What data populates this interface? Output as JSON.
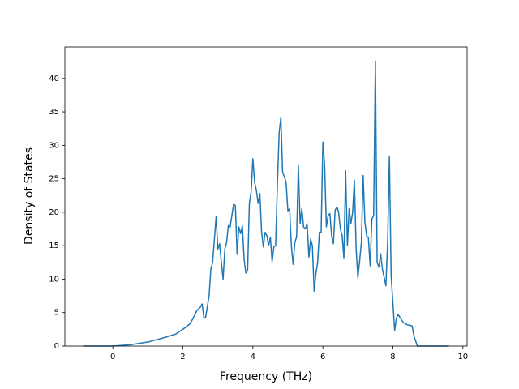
{
  "chart_data": {
    "type": "line",
    "xlabel": "Frequency (THz)",
    "ylabel": "Density of States",
    "x": [
      -0.85,
      0,
      0.5,
      1.0,
      1.5,
      1.8,
      2.0,
      2.2,
      2.3,
      2.4,
      2.5,
      2.55,
      2.6,
      2.65,
      2.75,
      2.8,
      2.85,
      2.95,
      3.0,
      3.05,
      3.1,
      3.15,
      3.2,
      3.25,
      3.3,
      3.35,
      3.45,
      3.5,
      3.55,
      3.6,
      3.65,
      3.7,
      3.75,
      3.8,
      3.85,
      3.9,
      3.95,
      4.0,
      4.05,
      4.1,
      4.15,
      4.2,
      4.25,
      4.3,
      4.35,
      4.4,
      4.45,
      4.5,
      4.55,
      4.6,
      4.65,
      4.7,
      4.75,
      4.8,
      4.85,
      4.9,
      4.95,
      5.0,
      5.05,
      5.1,
      5.15,
      5.2,
      5.25,
      5.3,
      5.35,
      5.4,
      5.45,
      5.5,
      5.55,
      5.6,
      5.65,
      5.7,
      5.75,
      5.8,
      5.85,
      5.9,
      5.95,
      6.0,
      6.05,
      6.1,
      6.15,
      6.2,
      6.25,
      6.3,
      6.35,
      6.4,
      6.45,
      6.5,
      6.55,
      6.6,
      6.65,
      6.7,
      6.75,
      6.8,
      6.85,
      6.9,
      6.95,
      7.0,
      7.05,
      7.1,
      7.15,
      7.2,
      7.25,
      7.3,
      7.35,
      7.4,
      7.45,
      7.5,
      7.55,
      7.6,
      7.65,
      7.7,
      7.75,
      7.8,
      7.85,
      7.9,
      7.95,
      8.0,
      8.05,
      8.1,
      8.15,
      8.2,
      8.3,
      8.4,
      8.55,
      8.6,
      8.7,
      9.6
    ],
    "series": [
      {
        "name": "DOS",
        "color": "#1f77b4",
        "values": [
          0,
          0,
          0.2,
          0.6,
          1.3,
          1.8,
          2.5,
          3.3,
          4.2,
          5.3,
          5.8,
          6.3,
          4.3,
          4.3,
          7.5,
          11.5,
          12.5,
          19.3,
          14.5,
          15.3,
          12.5,
          10.0,
          14.5,
          15.5,
          18.0,
          17.8,
          21.2,
          21.0,
          13.7,
          17.8,
          16.8,
          18.0,
          13.0,
          10.9,
          11.3,
          21.3,
          23.0,
          28.0,
          24.5,
          23.3,
          21.3,
          22.8,
          17.0,
          14.8,
          17.0,
          16.5,
          15.0,
          16.3,
          12.6,
          14.8,
          15.0,
          24.0,
          31.8,
          34.2,
          26.0,
          25.3,
          24.5,
          20.2,
          20.5,
          15.0,
          12.2,
          15.5,
          16.3,
          27.0,
          18.3,
          20.5,
          17.8,
          17.5,
          18.3,
          13.3,
          16.0,
          15.0,
          8.2,
          10.8,
          12.5,
          17.0,
          17.0,
          30.5,
          27.0,
          17.8,
          19.5,
          19.8,
          16.5,
          15.3,
          20.3,
          20.8,
          20.0,
          17.5,
          16.5,
          13.2,
          26.2,
          15.0,
          20.5,
          18.3,
          20.0,
          24.8,
          14.5,
          10.2,
          12.7,
          15.5,
          25.5,
          18.5,
          16.5,
          16.2,
          12.0,
          19.0,
          19.5,
          42.6,
          12.5,
          11.8,
          13.8,
          11.5,
          10.3,
          9.0,
          15.5,
          28.3,
          10.5,
          6.5,
          2.3,
          4.2,
          4.7,
          4.3,
          3.5,
          3.2,
          3.0,
          1.5,
          0,
          0
        ]
      }
    ],
    "xlim": [
      -1.37,
      10.12
    ],
    "xticks": [
      0,
      2,
      4,
      6,
      8,
      10
    ],
    "ylim": [
      0,
      44.7
    ],
    "yticks": [
      0,
      5,
      10,
      15,
      20,
      25,
      30,
      35,
      40
    ]
  }
}
